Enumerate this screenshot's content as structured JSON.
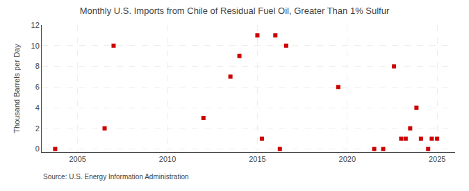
{
  "chart_data": {
    "type": "scatter",
    "title": "Monthly U.S. Imports from Chile of Residual Fuel Oil, Greater Than 1% Sulfur",
    "ylabel": "Thousand Barrels per Day",
    "annotations": [
      "Source: U.S. Energy Information Administration"
    ],
    "x": [
      2003.75,
      2006.5,
      2007.0,
      2012.0,
      2013.5,
      2014.0,
      2015.0,
      2015.25,
      2016.0,
      2016.25,
      2016.6,
      2019.5,
      2021.5,
      2022.0,
      2022.6,
      2023.0,
      2023.25,
      2023.5,
      2023.85,
      2024.1,
      2024.5,
      2024.7,
      2025.0
    ],
    "values": [
      0,
      2,
      10,
      3,
      7,
      9,
      11,
      1,
      11,
      0,
      10,
      6,
      0,
      0,
      8,
      1,
      1,
      2,
      4,
      1,
      0,
      1,
      1
    ],
    "color": "#cc0000",
    "marker": "square",
    "xlim": [
      2003.0,
      2026.0
    ],
    "xticks": [
      2005,
      2010,
      2015,
      2020,
      2025
    ],
    "ylim": [
      -0.3,
      12
    ],
    "yticks": [
      0,
      2,
      4,
      6,
      8,
      10,
      12
    ],
    "grid": true
  }
}
